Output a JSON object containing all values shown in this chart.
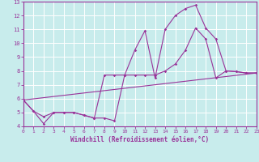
{
  "xlabel": "Windchill (Refroidissement éolien,°C)",
  "bg_color": "#c8ecec",
  "line_color": "#993399",
  "grid_color": "#ffffff",
  "xlim": [
    0,
    23
  ],
  "ylim": [
    4,
    13
  ],
  "xticks": [
    0,
    1,
    2,
    3,
    4,
    5,
    6,
    7,
    8,
    9,
    10,
    11,
    12,
    13,
    14,
    15,
    16,
    17,
    18,
    19,
    20,
    21,
    22,
    23
  ],
  "yticks": [
    4,
    5,
    6,
    7,
    8,
    9,
    10,
    11,
    12,
    13
  ],
  "line1_x": [
    0,
    1,
    2,
    3,
    4,
    5,
    6,
    7,
    8,
    9,
    10,
    11,
    12,
    13,
    14,
    15,
    16,
    17,
    18,
    19,
    20,
    21,
    22,
    23
  ],
  "line1_y": [
    5.9,
    5.1,
    4.2,
    5.0,
    5.0,
    5.0,
    4.8,
    4.6,
    4.6,
    4.4,
    7.7,
    9.5,
    10.9,
    7.5,
    11.0,
    12.0,
    12.5,
    12.75,
    11.1,
    10.3,
    8.0,
    7.95,
    7.85,
    7.85
  ],
  "line2_x": [
    0,
    1,
    2,
    3,
    4,
    5,
    6,
    7,
    8,
    9,
    10,
    11,
    12,
    13,
    14,
    15,
    16,
    17,
    18,
    19,
    20,
    21,
    22,
    23
  ],
  "line2_y": [
    5.9,
    5.1,
    4.7,
    5.0,
    5.0,
    5.0,
    4.8,
    4.6,
    7.7,
    7.7,
    7.7,
    7.7,
    7.7,
    7.7,
    8.0,
    8.5,
    9.5,
    11.1,
    10.3,
    7.5,
    8.0,
    7.95,
    7.85,
    7.85
  ],
  "line3_x": [
    0,
    23
  ],
  "line3_y": [
    5.9,
    7.85
  ]
}
